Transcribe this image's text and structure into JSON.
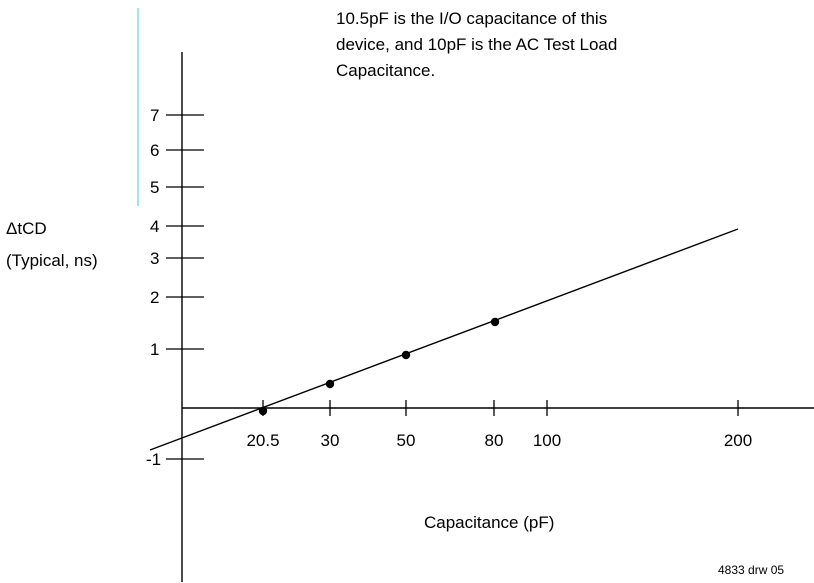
{
  "chart_data": {
    "type": "line",
    "xlabel": "Capacitance (pF)",
    "ylabel_line1": "ΔtCD",
    "ylabel_line2": "(Typical, ns)",
    "annotation": [
      "10.5pF is the I/O capacitance of this",
      "device, and 10pF is the AC Test Load",
      "Capacitance."
    ],
    "figure_id": "4833 drw 05",
    "x_ticks": [
      {
        "value": 20.5,
        "label": "20.5"
      },
      {
        "value": 30,
        "label": "30"
      },
      {
        "value": 50,
        "label": "50"
      },
      {
        "value": 80,
        "label": "80"
      },
      {
        "value": 100,
        "label": "100"
      },
      {
        "value": 200,
        "label": "200"
      }
    ],
    "y_ticks": [
      {
        "value": -1,
        "label": "-1"
      },
      {
        "value": 1,
        "label": "1"
      },
      {
        "value": 2,
        "label": "2"
      },
      {
        "value": 3,
        "label": "3"
      },
      {
        "value": 4,
        "label": "4"
      },
      {
        "value": 5,
        "label": "5"
      },
      {
        "value": 6,
        "label": "6"
      },
      {
        "value": 7,
        "label": "7"
      }
    ],
    "points": [
      {
        "x": 20.5,
        "y": 0
      },
      {
        "x": 30,
        "y": 0.5
      },
      {
        "x": 50,
        "y": 1.1
      },
      {
        "x": 80,
        "y": 1.6
      }
    ],
    "trend_line": [
      {
        "x": -0.4,
        "y": -0.75
      },
      {
        "x": 200,
        "y": 3.5
      }
    ],
    "accent_color": "#7fdfe6",
    "grid": false
  }
}
